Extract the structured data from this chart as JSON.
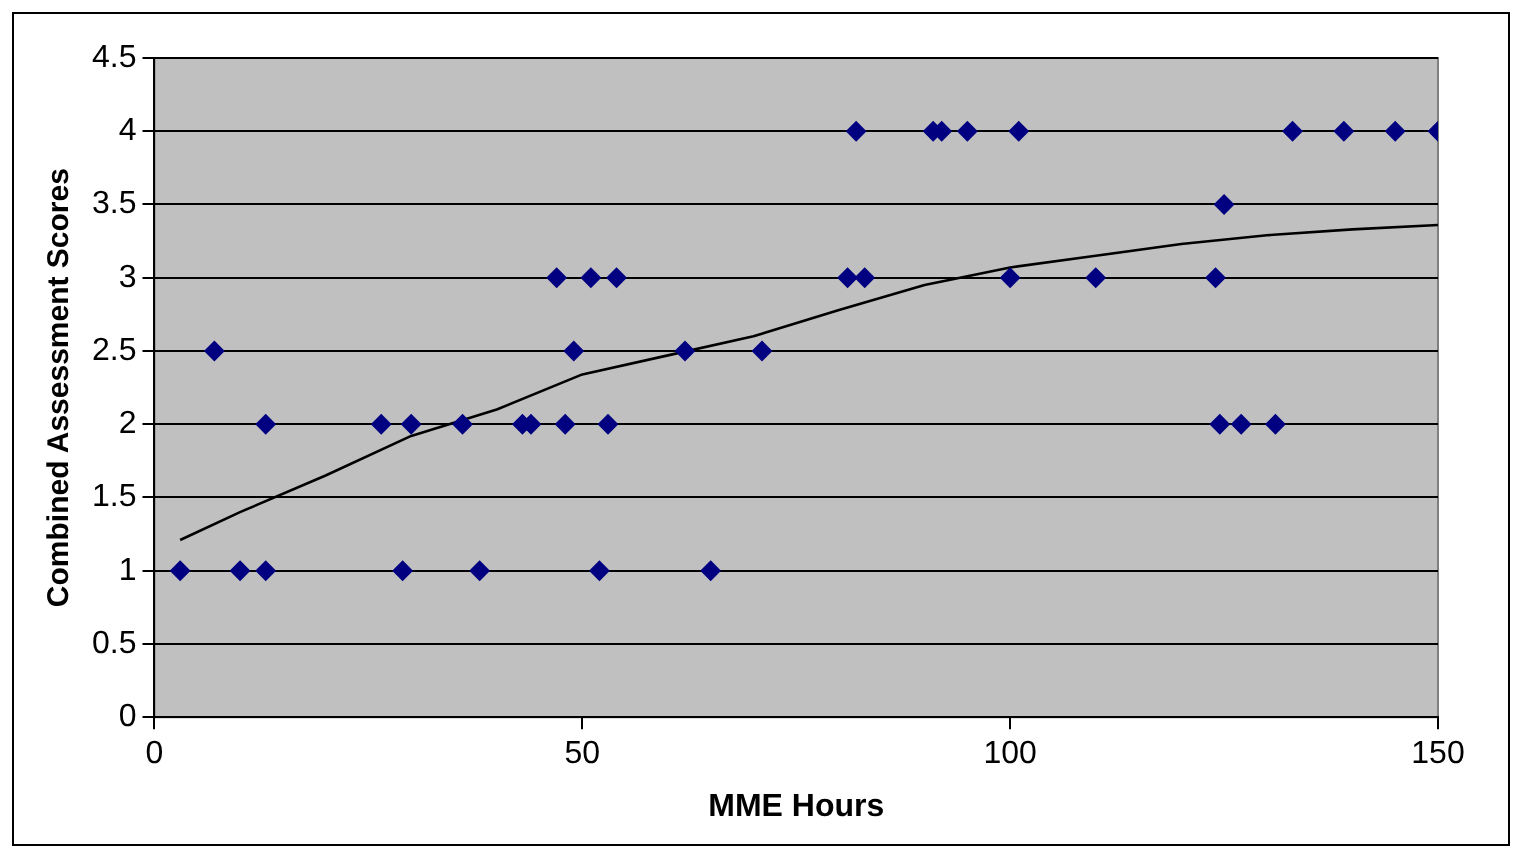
{
  "chart_data": {
    "type": "scatter",
    "xlabel": "MME Hours",
    "ylabel": "Combined Assessment Scores",
    "xlim": [
      0,
      150
    ],
    "xticks": [
      0,
      50,
      100,
      150
    ],
    "ylim": [
      0,
      4.5
    ],
    "yticks": [
      0,
      0.5,
      1,
      1.5,
      2,
      2.5,
      3,
      3.5,
      4,
      4.5
    ],
    "grid": "y",
    "legend": false,
    "series": [
      {
        "marker": "diamond",
        "color": "#000080",
        "x": [
          3,
          10,
          13,
          29,
          38,
          52,
          65,
          7,
          13,
          26.5,
          30,
          36,
          43,
          44,
          48,
          53,
          47,
          51,
          54,
          49,
          62,
          71,
          81,
          83,
          100,
          110,
          124,
          82,
          91,
          92,
          95,
          101,
          133,
          139,
          145,
          150,
          125,
          124.5,
          127,
          131
        ],
        "values": [
          1,
          1,
          1,
          1,
          1,
          1,
          1,
          2.5,
          2,
          2,
          2,
          2,
          2,
          2,
          2,
          2,
          3,
          3,
          3,
          2.5,
          2.5,
          2.5,
          3,
          3,
          3,
          3,
          3,
          4,
          4,
          4,
          4,
          4,
          4,
          4,
          4,
          4,
          3.5,
          2,
          2,
          2
        ]
      },
      {
        "type": "line",
        "marker": "none",
        "color": "#000000",
        "x": [
          3,
          10,
          20,
          30,
          40,
          50,
          60,
          70,
          80,
          90,
          100,
          110,
          120,
          130,
          140,
          150
        ],
        "values": [
          1.21,
          1.4,
          1.65,
          1.92,
          2.1,
          2.34,
          2.47,
          2.6,
          2.78,
          2.95,
          3.07,
          3.15,
          3.23,
          3.29,
          3.33,
          3.36
        ]
      }
    ]
  }
}
